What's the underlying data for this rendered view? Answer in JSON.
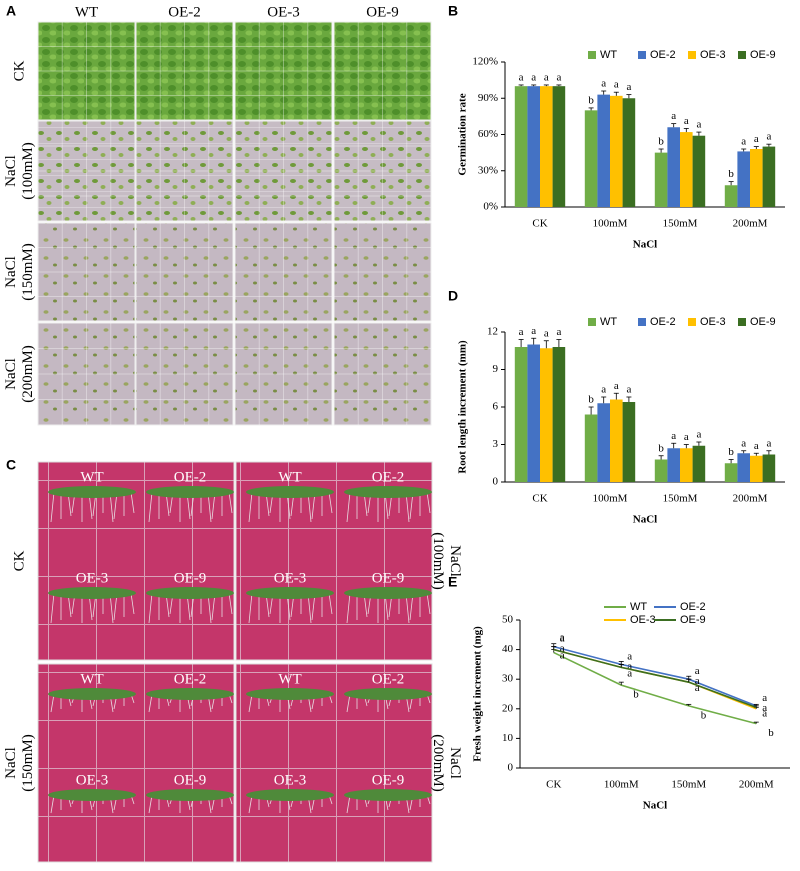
{
  "panel_labels": {
    "a": "A",
    "b": "B",
    "c": "C",
    "d": "D",
    "e": "E"
  },
  "panel_a": {
    "columns": [
      "WT",
      "OE-2",
      "OE-3",
      "OE-9"
    ],
    "rows": [
      [
        "CK"
      ],
      [
        "NaCl",
        "(100mM)"
      ],
      [
        "NaCl",
        "(150mM)"
      ],
      [
        "NaCl",
        "(200mM)"
      ]
    ]
  },
  "panel_c": {
    "quadrants": [
      {
        "condition": [
          "CK"
        ],
        "labels": [
          "WT",
          "OE-2",
          "OE-3",
          "OE-9"
        ]
      },
      {
        "condition": [
          "NaCl",
          "(100mM)"
        ],
        "labels": [
          "WT",
          "OE-2",
          "OE-3",
          "OE-9"
        ]
      },
      {
        "condition": [
          "NaCl",
          "(150mM)"
        ],
        "labels": [
          "WT",
          "OE-2",
          "OE-3",
          "OE-9"
        ]
      },
      {
        "condition": [
          "NaCl",
          "(200mM)"
        ],
        "labels": [
          "WT",
          "OE-2",
          "OE-3",
          "OE-9"
        ]
      }
    ]
  },
  "chart_data": [
    {
      "type": "bar",
      "xlabel": "NaCl",
      "ylabel": "Germination rate",
      "categories": [
        "CK",
        "100mM",
        "150mM",
        "200mM"
      ],
      "series": [
        {
          "name": "WT",
          "color": "#70ad47",
          "values": [
            100,
            80,
            45,
            18
          ],
          "errors": [
            1,
            2,
            3,
            3
          ],
          "letters": [
            "a",
            "b",
            "b",
            "b"
          ]
        },
        {
          "name": "OE-2",
          "color": "#4472c4",
          "values": [
            100,
            93,
            66,
            46
          ],
          "errors": [
            1,
            3,
            3,
            2
          ],
          "letters": [
            "a",
            "a",
            "a",
            "a"
          ]
        },
        {
          "name": "OE-3",
          "color": "#ffc000",
          "values": [
            100,
            92,
            62,
            48
          ],
          "errors": [
            1,
            3,
            3,
            2
          ],
          "letters": [
            "a",
            "a",
            "a",
            "a"
          ]
        },
        {
          "name": "OE-9",
          "color": "#3b6e22",
          "values": [
            100,
            90,
            59,
            50
          ],
          "errors": [
            1,
            3,
            3,
            2
          ],
          "letters": [
            "a",
            "a",
            "a",
            "a"
          ]
        }
      ],
      "ylim": [
        0,
        120
      ],
      "yticks": [
        {
          "value": 0,
          "label": "0%"
        },
        {
          "value": 30,
          "label": "30%"
        },
        {
          "value": 60,
          "label": "60%"
        },
        {
          "value": 90,
          "label": "90%"
        },
        {
          "value": 120,
          "label": "120%"
        }
      ],
      "legend": "top"
    },
    {
      "type": "bar",
      "xlabel": "NaCl",
      "ylabel": "Root length increment (mm)",
      "categories": [
        "CK",
        "100mM",
        "150mM",
        "200mM"
      ],
      "series": [
        {
          "name": "WT",
          "color": "#70ad47",
          "values": [
            10.8,
            5.4,
            1.8,
            1.5
          ],
          "errors": [
            0.6,
            0.6,
            0.3,
            0.3
          ],
          "letters": [
            "a",
            "b",
            "b",
            "b"
          ]
        },
        {
          "name": "OE-2",
          "color": "#4472c4",
          "values": [
            11.0,
            6.3,
            2.7,
            2.3
          ],
          "errors": [
            0.5,
            0.5,
            0.4,
            0.2
          ],
          "letters": [
            "a",
            "a",
            "a",
            "a"
          ]
        },
        {
          "name": "OE-3",
          "color": "#ffc000",
          "values": [
            10.7,
            6.6,
            2.7,
            2.1
          ],
          "errors": [
            0.6,
            0.5,
            0.3,
            0.2
          ],
          "letters": [
            "a",
            "a",
            "a",
            "a"
          ]
        },
        {
          "name": "OE-9",
          "color": "#3b6e22",
          "values": [
            10.8,
            6.4,
            2.9,
            2.2
          ],
          "errors": [
            0.6,
            0.4,
            0.3,
            0.3
          ],
          "letters": [
            "a",
            "a",
            "a",
            "a"
          ]
        }
      ],
      "ylim": [
        0,
        12
      ],
      "yticks": [
        0,
        3,
        6,
        9,
        12
      ],
      "legend": "top"
    },
    {
      "type": "line",
      "xlabel": "NaCl",
      "ylabel": "Fresh weight increment (mg)",
      "categories": [
        "CK",
        "100mM",
        "150mM",
        "200mM"
      ],
      "series": [
        {
          "name": "WT",
          "color": "#70ad47",
          "values": [
            39,
            28,
            21,
            15
          ],
          "errors": [
            1,
            1,
            0.5,
            0.5
          ],
          "letters": [
            "a",
            "b",
            "b",
            "b"
          ]
        },
        {
          "name": "OE-2",
          "color": "#4472c4",
          "values": [
            41,
            35,
            30,
            21
          ],
          "errors": [
            1,
            1,
            1,
            0.5
          ],
          "letters": [
            "a",
            "a",
            "a",
            "a"
          ]
        },
        {
          "name": "OE-3",
          "color": "#ffc000",
          "values": [
            40,
            34,
            29,
            20
          ],
          "errors": [
            1,
            1,
            1,
            0.5
          ],
          "letters": [
            "a",
            "a",
            "a",
            "a"
          ]
        },
        {
          "name": "OE-9",
          "color": "#3b6e22",
          "values": [
            40,
            34,
            29,
            20.5
          ],
          "errors": [
            1,
            1,
            1,
            0.5
          ],
          "letters": [
            "a",
            "a",
            "a",
            "a"
          ]
        }
      ],
      "ylim": [
        0,
        50
      ],
      "yticks": [
        0,
        10,
        20,
        30,
        40,
        50
      ],
      "legend": "top"
    }
  ]
}
